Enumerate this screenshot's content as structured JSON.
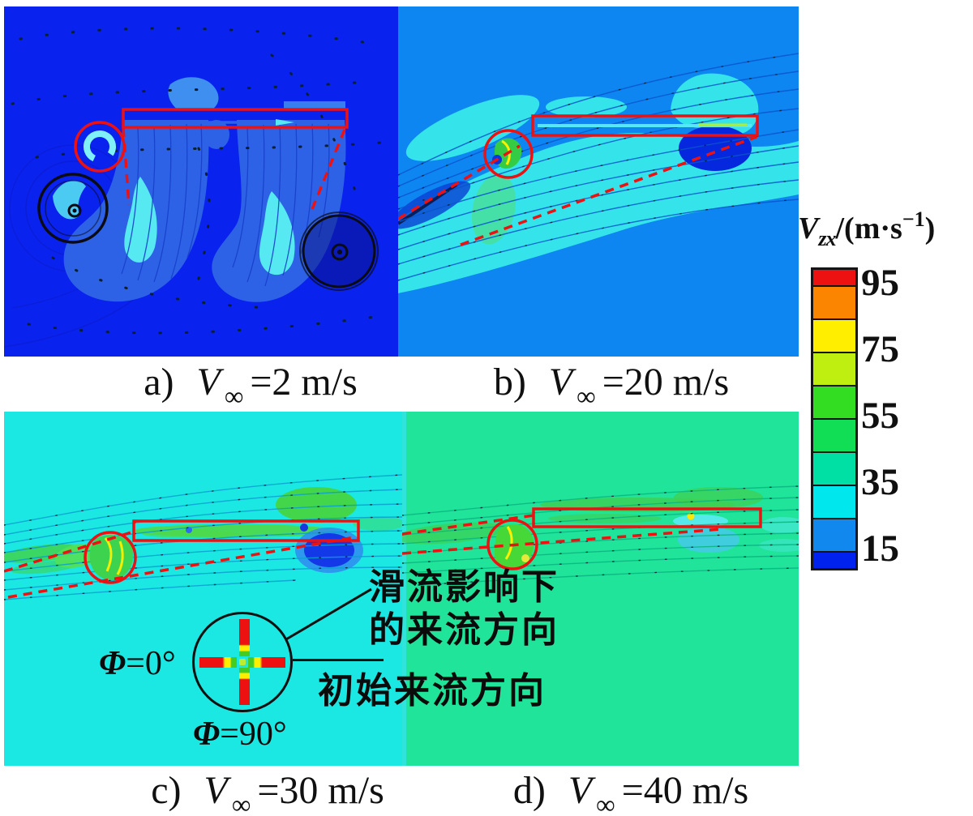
{
  "theme": {
    "accent_red": "#ee1111",
    "line_black": "#101010",
    "figure_bg": "#ffffff"
  },
  "panels": [
    {
      "id": "a",
      "bg": "#0a22ee",
      "caption": {
        "prefix": "a)",
        "symbol": "V",
        "subscript": "∞",
        "rest": "=2 m/s"
      }
    },
    {
      "id": "b",
      "bg": "#0d86f2",
      "caption": {
        "prefix": "b)",
        "symbol": "V",
        "subscript": "∞",
        "rest": "=20 m/s"
      }
    },
    {
      "id": "c",
      "bg": "#1be8e2",
      "caption": {
        "prefix": "c)",
        "symbol": "V",
        "subscript": "∞",
        "rest": "=30 m/s"
      }
    },
    {
      "id": "d",
      "bg": "#1fe49a",
      "caption": {
        "prefix": "d)",
        "symbol": "V",
        "subscript": "∞",
        "rest": "=40 m/s"
      }
    }
  ],
  "colorbar": {
    "title": {
      "symbol": "V",
      "subscript": "zx",
      "rest": "/(m·s",
      "superscript": "−1",
      "close": ")"
    },
    "ticks": [
      "95",
      "75",
      "55",
      "35",
      "15"
    ],
    "tick_boundaries": [
      1,
      3,
      5,
      7,
      9
    ],
    "segments": [
      {
        "color": "#ee1111",
        "weight": 1
      },
      {
        "color": "#fb8500",
        "weight": 2
      },
      {
        "color": "#ffee00",
        "weight": 2
      },
      {
        "color": "#bfee11",
        "weight": 2
      },
      {
        "color": "#33dd22",
        "weight": 2
      },
      {
        "color": "#11dd55",
        "weight": 2
      },
      {
        "color": "#00dfa4",
        "weight": 2
      },
      {
        "color": "#00e8ee",
        "weight": 2
      },
      {
        "color": "#1188ee",
        "weight": 2
      },
      {
        "color": "#0022ee",
        "weight": 1
      }
    ]
  },
  "annotations": {
    "slipstream_line1": "滑流影响下",
    "slipstream_line2": "的来流方向",
    "initial": "初始来流方向",
    "phi_symbol": "Φ",
    "phi_zero_rest": "=0°",
    "phi_ninety_rest": "=90°"
  },
  "chart_data": {
    "type": "heatmap",
    "subtype": "cfd-velocity-contour-slipstream-panels",
    "panels": [
      {
        "label": "a",
        "freestream_velocity_m_per_s": 2
      },
      {
        "label": "b",
        "freestream_velocity_m_per_s": 20
      },
      {
        "label": "c",
        "freestream_velocity_m_per_s": 30
      },
      {
        "label": "d",
        "freestream_velocity_m_per_s": 40
      }
    ],
    "colorbar": {
      "quantity": "V_zx",
      "units": "m·s⁻¹",
      "tick_values": [
        95,
        75,
        55,
        35,
        15
      ],
      "segment_colors_top_to_bottom": [
        "#ee1111",
        "#fb8500",
        "#ffee00",
        "#bfee11",
        "#33dd22",
        "#11dd55",
        "#00dfa4",
        "#00e8ee",
        "#1188ee",
        "#0022ee"
      ]
    },
    "overlays": [
      "red circle: propeller location in each panel",
      "red rectangle: wing section in each panel",
      "red dashed lines: incoming-flow directions",
      "inset disk: propeller blades at Φ=0° and Φ=90°"
    ],
    "annotation_labels": [
      "滑流影响下的来流方向",
      "初始来流方向",
      "Φ=0°",
      "Φ=90°"
    ],
    "legend_position": "right",
    "grid": false
  }
}
